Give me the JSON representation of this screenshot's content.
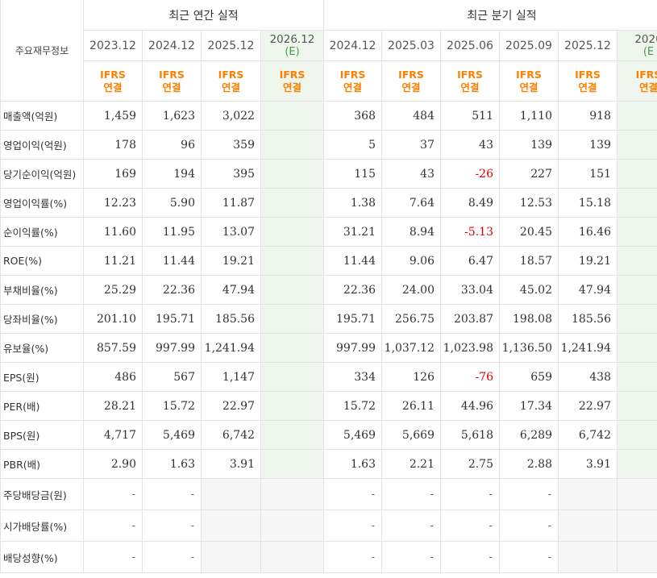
{
  "header": {
    "row_label": "주요재무정보",
    "annual_title": "최근 연간 실적",
    "quarter_title": "최근 분기 실적",
    "annual_periods": [
      "2023.12",
      "2024.12",
      "2025.12",
      "2026.12"
    ],
    "annual_est_mark": "(E)",
    "quarter_periods": [
      "2024.12",
      "2025.03",
      "2025.06",
      "2025.09",
      "2025.12",
      "2026"
    ],
    "quarter_est_mark": "(E",
    "type_line1": "IFRS",
    "type_line2": "연결",
    "type_line1_cut": "IFRS",
    "type_line2_cut": "연결"
  },
  "rows": [
    {
      "label": "매출액(억원)",
      "annual": [
        "1,459",
        "1,623",
        "3,022",
        ""
      ],
      "quarter": [
        "368",
        "484",
        "511",
        "1,110",
        "918",
        ""
      ]
    },
    {
      "label": "영업이익(억원)",
      "annual": [
        "178",
        "96",
        "359",
        ""
      ],
      "quarter": [
        "5",
        "37",
        "43",
        "139",
        "139",
        ""
      ]
    },
    {
      "label": "당기순이익(억원)",
      "annual": [
        "169",
        "194",
        "395",
        ""
      ],
      "quarter": [
        "115",
        "43",
        "-26",
        "227",
        "151",
        ""
      ]
    },
    {
      "label": "영업이익률(%)",
      "annual": [
        "12.23",
        "5.90",
        "11.87",
        ""
      ],
      "quarter": [
        "1.38",
        "7.64",
        "8.49",
        "12.53",
        "15.18",
        ""
      ]
    },
    {
      "label": "순이익률(%)",
      "annual": [
        "11.60",
        "11.95",
        "13.07",
        ""
      ],
      "quarter": [
        "31.21",
        "8.94",
        "-5.13",
        "20.45",
        "16.46",
        ""
      ]
    },
    {
      "label": "ROE(%)",
      "annual": [
        "11.21",
        "11.44",
        "19.21",
        ""
      ],
      "quarter": [
        "11.44",
        "9.06",
        "6.47",
        "18.57",
        "19.21",
        ""
      ]
    },
    {
      "label": "부채비율(%)",
      "annual": [
        "25.29",
        "22.36",
        "47.94",
        ""
      ],
      "quarter": [
        "22.36",
        "24.00",
        "33.04",
        "45.02",
        "47.94",
        ""
      ]
    },
    {
      "label": "당좌비율(%)",
      "annual": [
        "201.10",
        "195.71",
        "185.56",
        ""
      ],
      "quarter": [
        "195.71",
        "256.75",
        "203.87",
        "198.08",
        "185.56",
        ""
      ]
    },
    {
      "label": "유보율(%)",
      "annual": [
        "857.59",
        "997.99",
        "1,241.94",
        ""
      ],
      "quarter": [
        "997.99",
        "1,037.12",
        "1,023.98",
        "1,136.50",
        "1,241.94",
        ""
      ]
    },
    {
      "label": "EPS(원)",
      "annual": [
        "486",
        "567",
        "1,147",
        ""
      ],
      "quarter": [
        "334",
        "126",
        "-76",
        "659",
        "438",
        ""
      ]
    },
    {
      "label": "PER(배)",
      "annual": [
        "28.21",
        "15.72",
        "22.97",
        ""
      ],
      "quarter": [
        "15.72",
        "26.11",
        "44.96",
        "17.34",
        "22.97",
        ""
      ]
    },
    {
      "label": "BPS(원)",
      "annual": [
        "4,717",
        "5,469",
        "6,742",
        ""
      ],
      "quarter": [
        "5,469",
        "5,669",
        "5,618",
        "6,289",
        "6,742",
        ""
      ]
    },
    {
      "label": "PBR(배)",
      "annual": [
        "2.90",
        "1.63",
        "3.91",
        ""
      ],
      "quarter": [
        "1.63",
        "2.21",
        "2.75",
        "2.88",
        "3.91",
        ""
      ]
    },
    {
      "label": "주당배당금(원)",
      "annual": [
        "-",
        "-",
        "",
        ""
      ],
      "quarter": [
        "-",
        "-",
        "-",
        "-",
        "",
        ""
      ]
    },
    {
      "label": "시가배당률(%)",
      "annual": [
        "-",
        "-",
        "",
        ""
      ],
      "quarter": [
        "-",
        "-",
        "-",
        "-",
        "",
        ""
      ]
    },
    {
      "label": "배당성향(%)",
      "annual": [
        "-",
        "-",
        "",
        ""
      ],
      "quarter": [
        "-",
        "-",
        "-",
        "-",
        "",
        ""
      ]
    }
  ],
  "colors": {
    "negative": "#e00000",
    "ifrs": "#ff7f00",
    "estimate_bg": "#eef6ed",
    "estimate_text": "#4a9a4a"
  }
}
